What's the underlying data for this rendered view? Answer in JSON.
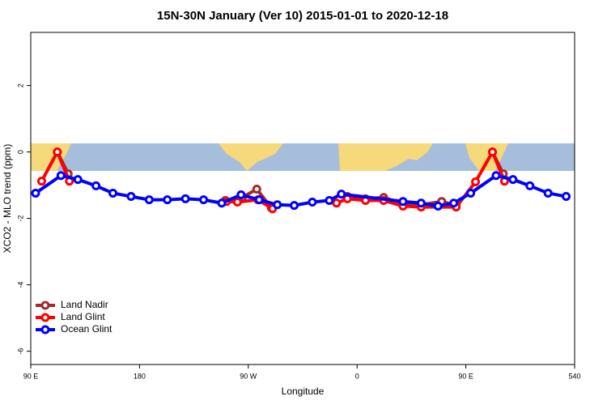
{
  "chart_data": {
    "type": "line",
    "title": "15N-30N January (Ver 10)   2015-01-01 to 2020-12-18",
    "x_label": "Longitude",
    "y_label": "XCO2 - MLO trend (ppm)",
    "xlim": [
      90,
      540
    ],
    "ylim": [
      -6.4,
      3.6
    ],
    "xticks": [
      {
        "value": 90,
        "label": "90 E"
      },
      180,
      {
        "value": 270,
        "label": "90 W"
      },
      {
        "value": 360,
        "label": "0"
      },
      {
        "value": 450,
        "label": "90 E"
      },
      540
    ],
    "yticks": [
      -6,
      -4,
      -2,
      0,
      2
    ],
    "grid": false,
    "legend": "bottom-left",
    "series": [
      {
        "name": "Land Nadir",
        "color": "#a52a2a",
        "x": [
          112,
          121,
          null,
          251,
          265,
          277,
          289,
          null,
          352,
          367,
          382,
          398,
          413,
          430,
          442,
          null,
          472,
          481
        ],
        "values": [
          0,
          -0.66,
          null,
          -1.46,
          -1.37,
          -1.12,
          -1.68,
          null,
          -1.34,
          -1.41,
          -1.37,
          -1.56,
          -1.59,
          -1.49,
          -1.61,
          null,
          0,
          -0.66
        ]
      },
      {
        "name": "Land Glint",
        "color": "#ff0000",
        "x": [
          99,
          112,
          122,
          null,
          252,
          261,
          278,
          290,
          null,
          343,
          352,
          367,
          382,
          398,
          413,
          442,
          458,
          472,
          482
        ],
        "values": [
          -0.88,
          0,
          -0.88,
          null,
          -1.49,
          -1.51,
          -1.44,
          -1.71,
          null,
          -1.54,
          -1.41,
          -1.46,
          -1.46,
          -1.63,
          -1.66,
          -1.66,
          -0.9,
          0,
          -0.88
        ]
      },
      {
        "name": "Ocean Glint",
        "color": "#0000ff",
        "x": [
          94,
          115,
          129,
          144,
          158,
          173,
          188,
          203,
          218,
          233,
          248,
          264,
          279,
          294,
          308,
          323,
          337,
          347,
          398,
          413,
          427,
          440,
          454,
          475,
          489,
          503,
          518,
          533
        ],
        "values": [
          -1.24,
          -0.71,
          -0.83,
          -1.02,
          -1.24,
          -1.34,
          -1.44,
          -1.44,
          -1.41,
          -1.44,
          -1.54,
          -1.29,
          -1.44,
          -1.59,
          -1.61,
          -1.51,
          -1.46,
          -1.27,
          -1.49,
          -1.54,
          -1.63,
          -1.54,
          -1.24,
          -0.71,
          -0.83,
          -1.02,
          -1.24,
          -1.34
        ]
      }
    ]
  }
}
